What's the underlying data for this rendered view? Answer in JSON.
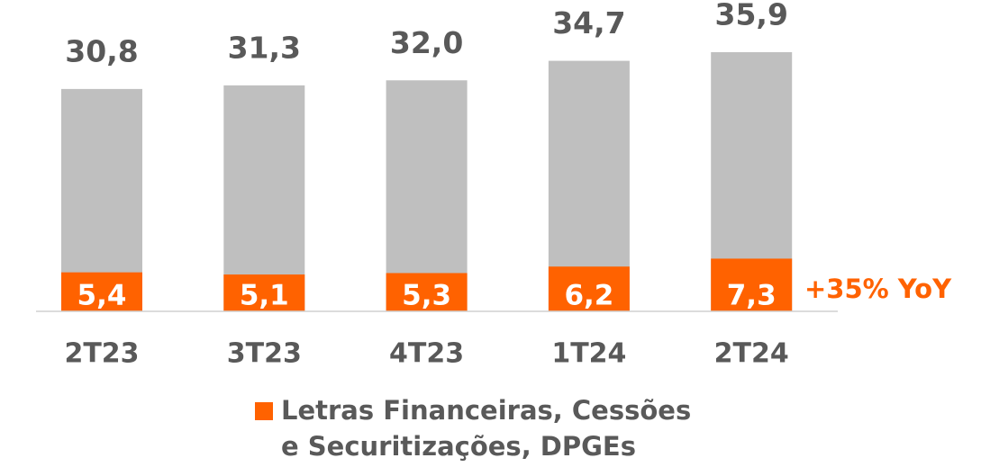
{
  "chart_data": {
    "type": "bar",
    "categories": [
      "2T23",
      "3T23",
      "4T23",
      "1T24",
      "2T24"
    ],
    "totals": {
      "color": "#bfbfbf",
      "values": [
        30.8,
        31.3,
        32.0,
        34.7,
        35.9
      ],
      "value_labels": [
        "30,8",
        "31,3",
        "32,0",
        "34,7",
        "35,9"
      ]
    },
    "series": [
      {
        "name": "Letras Financeiras, Cessões e Securitizações, DPGEs",
        "color": "#ff6200",
        "values": [
          5.4,
          5.1,
          5.3,
          6.2,
          7.3
        ],
        "value_labels": [
          "5,4",
          "5,1",
          "5,3",
          "6,2",
          "7,3"
        ]
      }
    ],
    "annotation": "+35% YoY",
    "ylim": [
      0,
      43
    ]
  }
}
